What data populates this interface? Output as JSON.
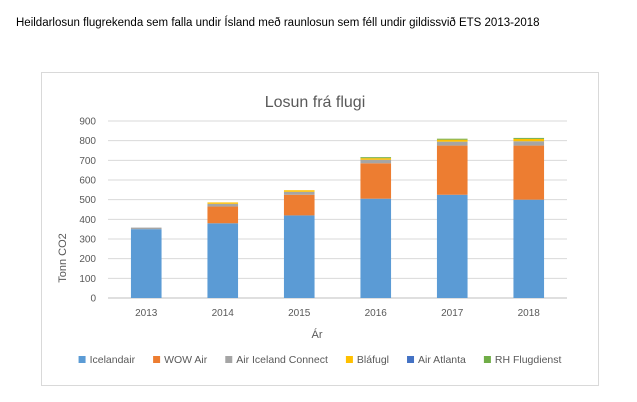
{
  "caption": "Heildarlosun flugrekenda sem falla undir Ísland með raunlosun sem féll undir gildissvið ETS 2013-2018",
  "chart_data": {
    "type": "bar",
    "stacked": true,
    "title": "Losun frá flugi",
    "xlabel": "Ár",
    "ylabel": "Tonn CO2",
    "ylim": [
      0,
      900
    ],
    "yticks": [
      "0",
      "100",
      "200",
      "300",
      "400",
      "500",
      "600",
      "700",
      "800",
      "900"
    ],
    "grid": true,
    "legend_position": "bottom",
    "categories": [
      "2013",
      "2014",
      "2015",
      "2016",
      "2017",
      "2018"
    ],
    "series": [
      {
        "name": "Icelandair",
        "color": "#5b9bd5",
        "values": [
          350,
          380,
          420,
          505,
          525,
          500
        ]
      },
      {
        "name": "WOW Air",
        "color": "#ed7d31",
        "values": [
          0,
          85,
          105,
          180,
          250,
          275
        ]
      },
      {
        "name": "Air Iceland Connect",
        "color": "#a5a5a5",
        "values": [
          8,
          14,
          15,
          18,
          20,
          22
        ]
      },
      {
        "name": "Bláfugl",
        "color": "#ffc000",
        "values": [
          0,
          7,
          8,
          8,
          10,
          12
        ]
      },
      {
        "name": "Air Atlanta",
        "color": "#4472c4",
        "values": [
          0,
          0,
          0,
          0,
          0,
          0
        ]
      },
      {
        "name": "RH Flugdienst",
        "color": "#70ad47",
        "values": [
          0,
          0,
          0,
          5,
          5,
          5
        ]
      }
    ]
  }
}
